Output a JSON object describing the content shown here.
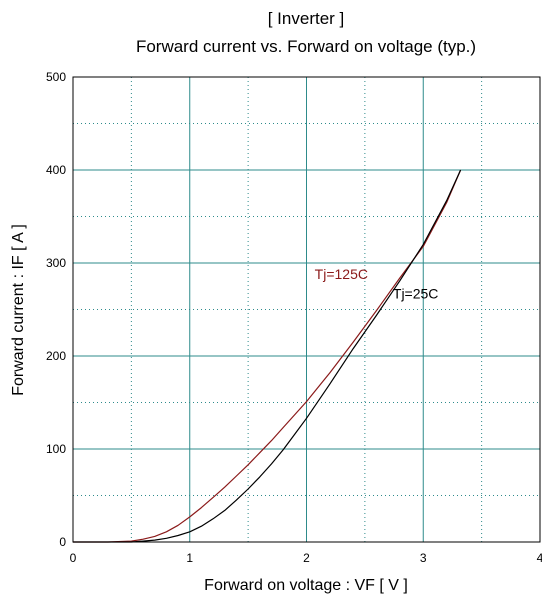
{
  "chart_data": {
    "type": "line",
    "title": "[ Inverter ]",
    "subtitle": "Forward current  vs.  Forward on voltage  (typ.)",
    "xlabel": "Forward on voltage  :  VF  [ V ]",
    "ylabel": "Forward current  :  IF  [ A ]",
    "xlim": [
      0,
      4
    ],
    "ylim": [
      0,
      500
    ],
    "xticks": [
      "0",
      "1",
      "2",
      "3",
      "4"
    ],
    "yticks": [
      "0",
      "100",
      "200",
      "300",
      "400",
      "500"
    ],
    "grid": true,
    "series": [
      {
        "name": "Tj=125C",
        "color": "#8b1a1a",
        "x": [
          0,
          0.3,
          0.5,
          0.6,
          0.7,
          0.8,
          0.9,
          1.0,
          1.1,
          1.2,
          1.3,
          1.4,
          1.5,
          1.6,
          1.7,
          1.8,
          1.9,
          2.0,
          2.2,
          2.4,
          2.6,
          2.8,
          3.0,
          3.2,
          3.32
        ],
        "y": [
          0,
          0,
          1,
          3,
          6,
          11,
          18,
          27,
          37,
          48,
          59,
          71,
          83,
          96,
          109,
          123,
          137,
          151,
          182,
          215,
          249,
          284,
          318,
          365,
          400
        ]
      },
      {
        "name": "Tj=25C",
        "color": "#000000",
        "x": [
          0,
          0.5,
          0.6,
          0.7,
          0.8,
          0.9,
          1.0,
          1.1,
          1.2,
          1.3,
          1.4,
          1.5,
          1.6,
          1.7,
          1.8,
          1.9,
          2.0,
          2.2,
          2.4,
          2.6,
          2.8,
          3.0,
          3.2,
          3.32
        ],
        "y": [
          0,
          0,
          1,
          2,
          4,
          7,
          11,
          17,
          25,
          34,
          45,
          57,
          70,
          84,
          99,
          116,
          133,
          170,
          208,
          244,
          281,
          320,
          367,
          400
        ]
      }
    ],
    "annotations": [
      {
        "text": "Tj=125C",
        "series": "Tj=125C",
        "x": 2.07,
        "y": 283,
        "color": "#8b1a1a"
      },
      {
        "text": "Tj=25C",
        "series": "Tj=25C",
        "x": 2.74,
        "y": 262,
        "color": "#000000"
      }
    ]
  }
}
